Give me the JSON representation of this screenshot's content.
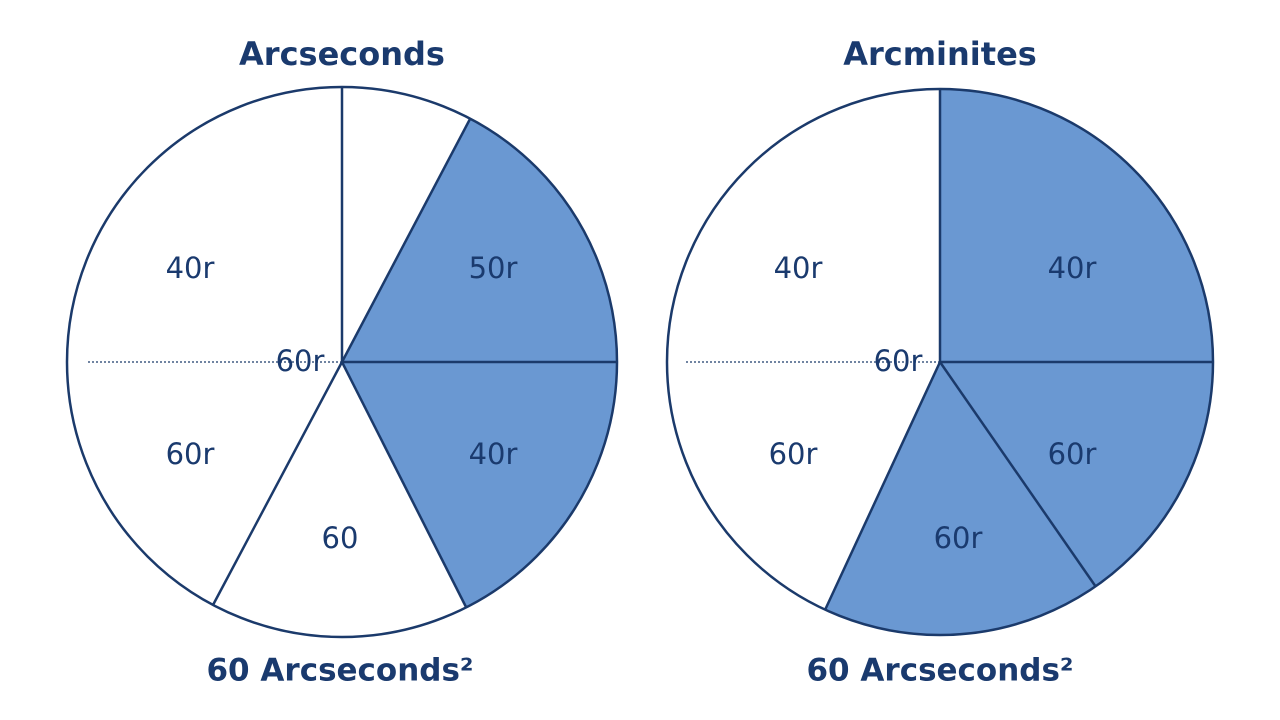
{
  "diagrams": [
    {
      "title": "Arcseconds",
      "center_label": "60r",
      "caption": "60 Arcseconds²",
      "segments": [
        {
          "label": "40r"
        },
        {
          "label": "50r"
        },
        {
          "label": "60r"
        },
        {
          "label": "40r"
        },
        {
          "label": "60"
        }
      ]
    },
    {
      "title": "Arcminites",
      "center_label": "60r",
      "caption": "60 Arcseconds²",
      "segments": [
        {
          "label": "40r"
        },
        {
          "label": "40r"
        },
        {
          "label": "60r"
        },
        {
          "label": "60r"
        },
        {
          "label": "60r"
        }
      ]
    }
  ]
}
